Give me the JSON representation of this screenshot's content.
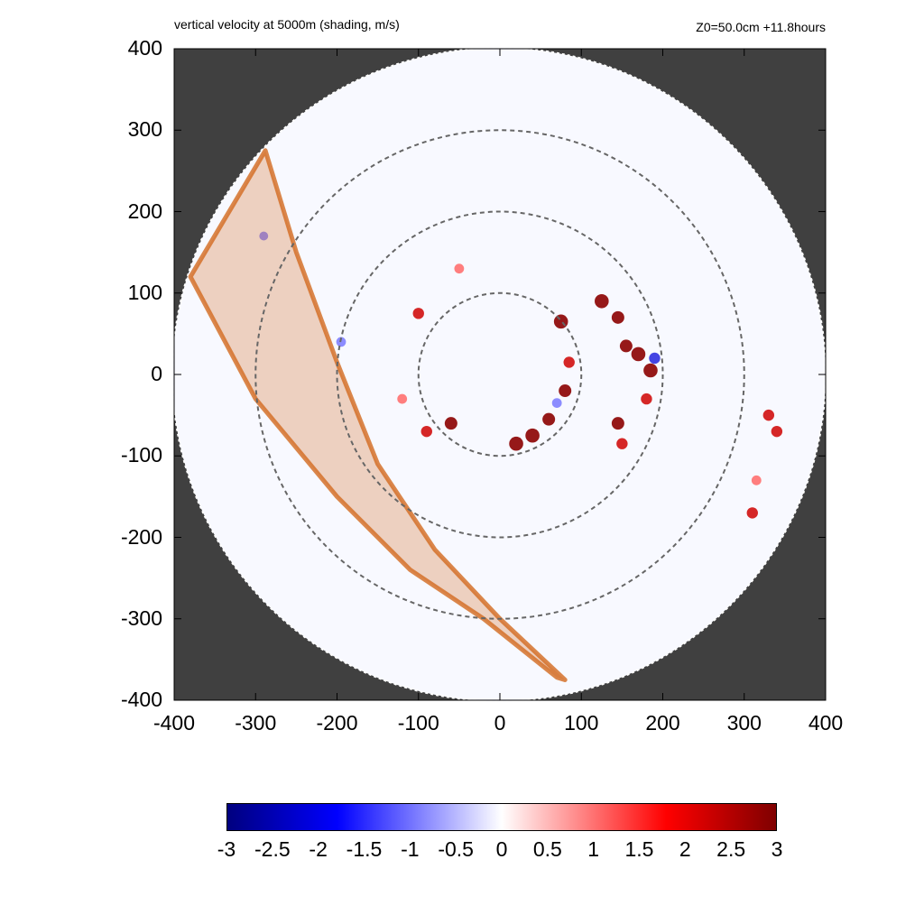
{
  "header": {
    "title_left": "vertical velocity at 5000m (shading, m/s)",
    "title_right": "Z0=50.0cm  +11.8hours"
  },
  "chart_data": {
    "type": "heatmap",
    "title": "vertical velocity at 5000m (shading, m/s)",
    "annotation": "Z0=50.0cm  +11.8hours",
    "xlabel": "",
    "ylabel": "",
    "xlim": [
      -400,
      400
    ],
    "ylim": [
      -400,
      400
    ],
    "x_ticks": [
      "-400",
      "-300",
      "-200",
      "-100",
      "0",
      "100",
      "200",
      "300",
      "400"
    ],
    "y_ticks": [
      "400",
      "300",
      "200",
      "100",
      "0",
      "-100",
      "-200",
      "-300",
      "-400"
    ],
    "domain_radius": 400,
    "range_rings_radius": [
      100,
      200,
      300
    ],
    "colorbar": {
      "range": [
        -3,
        3
      ],
      "ticks": [
        "-3",
        "-2.5",
        "-2",
        "-1.5",
        "-1",
        "-0.5",
        "0",
        "0.5",
        "1",
        "1.5",
        "2",
        "2.5",
        "3"
      ],
      "colors": [
        "#00007f",
        "#0000ff",
        "#ffffff",
        "#ff0000",
        "#7f0000"
      ]
    },
    "colors": {
      "outside_domain": "#404040",
      "swath": "#d2691e"
    },
    "swath_polygon": [
      [
        -288,
        275
      ],
      [
        -250,
        150
      ],
      [
        -200,
        15
      ],
      [
        -150,
        -110
      ],
      [
        -80,
        -215
      ],
      [
        0,
        -300
      ],
      [
        80,
        -375
      ],
      [
        70,
        -372
      ],
      [
        -20,
        -300
      ],
      [
        -110,
        -240
      ],
      [
        -200,
        -150
      ],
      [
        -300,
        -30
      ],
      [
        -380,
        120
      ]
    ],
    "features": [
      {
        "x": 20,
        "y": -85,
        "w": 3
      },
      {
        "x": 40,
        "y": -75,
        "w": 3
      },
      {
        "x": 60,
        "y": -55,
        "w": 2.5
      },
      {
        "x": 80,
        "y": -20,
        "w": 2.5
      },
      {
        "x": 85,
        "y": 15,
        "w": 2
      },
      {
        "x": 75,
        "y": 65,
        "w": 3
      },
      {
        "x": 125,
        "y": 90,
        "w": 3
      },
      {
        "x": 145,
        "y": 70,
        "w": 2.5
      },
      {
        "x": 155,
        "y": 35,
        "w": 2.5
      },
      {
        "x": 170,
        "y": 25,
        "w": 3
      },
      {
        "x": 185,
        "y": 5,
        "w": 3
      },
      {
        "x": 180,
        "y": -30,
        "w": 2
      },
      {
        "x": 145,
        "y": -60,
        "w": 2.5
      },
      {
        "x": 150,
        "y": -85,
        "w": 2
      },
      {
        "x": -60,
        "y": -60,
        "w": 2.5
      },
      {
        "x": -90,
        "y": -70,
        "w": 2
      },
      {
        "x": -120,
        "y": -30,
        "w": 1.5
      },
      {
        "x": -100,
        "y": 75,
        "w": 2
      },
      {
        "x": -50,
        "y": 130,
        "w": 1.5
      },
      {
        "x": 190,
        "y": 20,
        "w": -2
      },
      {
        "x": 70,
        "y": -35,
        "w": -1.5
      },
      {
        "x": -195,
        "y": 40,
        "w": -1.5
      },
      {
        "x": -290,
        "y": 170,
        "w": -1.2
      },
      {
        "x": 315,
        "y": -130,
        "w": 1.5
      },
      {
        "x": 310,
        "y": -170,
        "w": 2
      },
      {
        "x": 340,
        "y": -70,
        "w": 2
      },
      {
        "x": 330,
        "y": -50,
        "w": 2
      }
    ]
  }
}
